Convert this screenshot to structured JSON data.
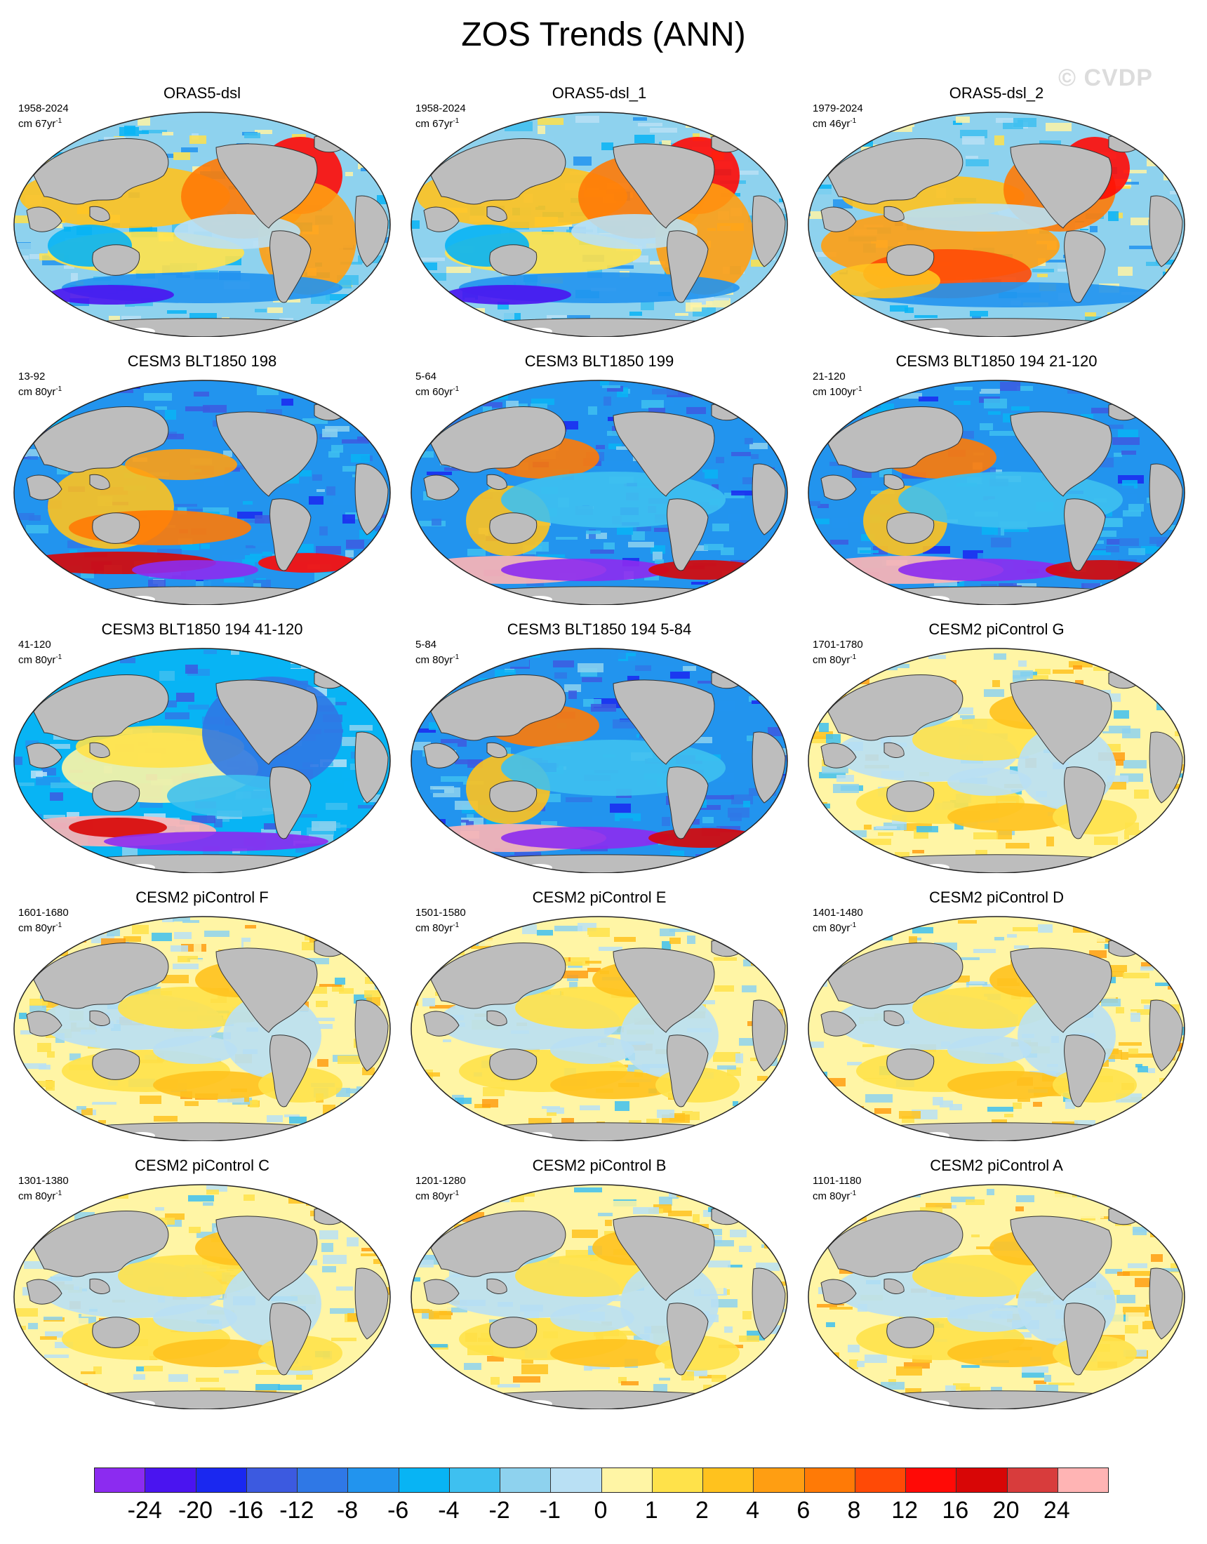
{
  "title": "ZOS Trends (ANN)",
  "watermark": "© CVDP",
  "colors": {
    "land": "#bdbdbd",
    "coastline": "#333333",
    "ice": "#ffffff",
    "ocean_default": "#f5f0a0"
  },
  "colorbar": {
    "colors": [
      "#8c2bf0",
      "#4a14f0",
      "#1a28f0",
      "#3c5ae0",
      "#2f78e6",
      "#2294ee",
      "#08b4f4",
      "#3ec0f0",
      "#8ed2ee",
      "#b9e0f4",
      "#fff5a5",
      "#ffe24a",
      "#ffc21e",
      "#ff9e12",
      "#ff7a06",
      "#ff4a06",
      "#ff0a06",
      "#d80606",
      "#d83c3c",
      "#ffb4b4"
    ],
    "labels": [
      "-24",
      "-20",
      "-16",
      "-12",
      "-8",
      "-6",
      "-4",
      "-2",
      "-1",
      "0",
      "1",
      "2",
      "4",
      "6",
      "8",
      "12",
      "16",
      "20",
      "24"
    ],
    "units": "cm"
  },
  "panels": [
    {
      "title": "ORAS5-dsl",
      "period": "1958-2024",
      "units": "cm 67yr",
      "units_exp": "-1",
      "palette": "obs_a"
    },
    {
      "title": "ORAS5-dsl_1",
      "period": "1958-2024",
      "units": "cm 67yr",
      "units_exp": "-1",
      "palette": "obs_a"
    },
    {
      "title": "ORAS5-dsl_2",
      "period": "1979-2024",
      "units": "cm 46yr",
      "units_exp": "-1",
      "palette": "obs_b"
    },
    {
      "title": "CESM3 BLT1850 198",
      "period": "13-92",
      "units": "cm 80yr",
      "units_exp": "-1",
      "palette": "cesm3_warm"
    },
    {
      "title": "CESM3 BLT1850 199",
      "period": "5-64",
      "units": "cm 60yr",
      "units_exp": "-1",
      "palette": "cesm3_cool"
    },
    {
      "title": "CESM3 BLT1850 194 21-120",
      "period": "21-120",
      "units": "cm 100yr",
      "units_exp": "-1",
      "palette": "cesm3_cool"
    },
    {
      "title": "CESM3 BLT1850 194 41-120",
      "period": "41-120",
      "units": "cm 80yr",
      "units_exp": "-1",
      "palette": "cesm3_mixed"
    },
    {
      "title": "CESM3 BLT1850 194 5-84",
      "period": "5-84",
      "units": "cm 80yr",
      "units_exp": "-1",
      "palette": "cesm3_cool"
    },
    {
      "title": "CESM2 piControl G",
      "period": "1701-1780",
      "units": "cm 80yr",
      "units_exp": "-1",
      "palette": "cesm2"
    },
    {
      "title": "CESM2 piControl F",
      "period": "1601-1680",
      "units": "cm 80yr",
      "units_exp": "-1",
      "palette": "cesm2"
    },
    {
      "title": "CESM2 piControl E",
      "period": "1501-1580",
      "units": "cm 80yr",
      "units_exp": "-1",
      "palette": "cesm2"
    },
    {
      "title": "CESM2 piControl D",
      "period": "1401-1480",
      "units": "cm 80yr",
      "units_exp": "-1",
      "palette": "cesm2"
    },
    {
      "title": "CESM2 piControl C",
      "period": "1301-1380",
      "units": "cm 80yr",
      "units_exp": "-1",
      "palette": "cesm2"
    },
    {
      "title": "CESM2 piControl B",
      "period": "1201-1280",
      "units": "cm 80yr",
      "units_exp": "-1",
      "palette": "cesm2"
    },
    {
      "title": "CESM2 piControl A",
      "period": "1101-1180",
      "units": "cm 80yr",
      "units_exp": "-1",
      "palette": "cesm2"
    }
  ]
}
